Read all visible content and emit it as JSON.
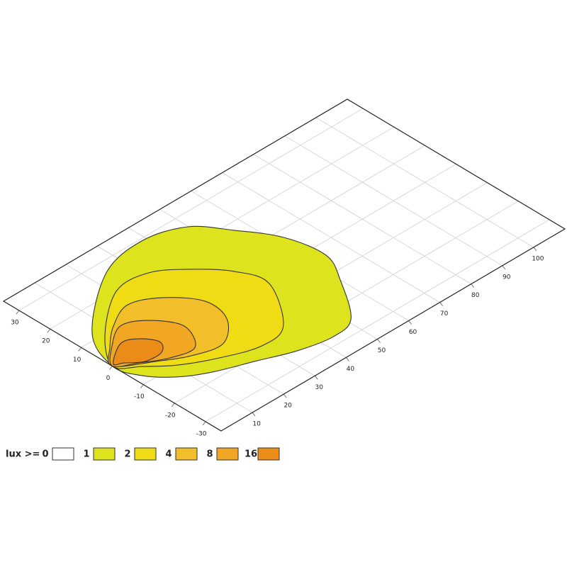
{
  "chart_data": {
    "type": "contour",
    "xlim": [
      0,
      110
    ],
    "ylim": [
      -35,
      35
    ],
    "xticks": [
      10,
      20,
      30,
      40,
      50,
      60,
      70,
      80,
      90,
      100
    ],
    "yticks": [
      -30,
      -20,
      -10,
      0,
      10,
      20,
      30
    ],
    "grid": true,
    "legend_label": "lux >=",
    "levels": [
      {
        "value": 0,
        "color": "#ffffff"
      },
      {
        "value": 1,
        "color": "#dde41e",
        "x": [
          0,
          5.65,
          24.2,
          38.6,
          49.8,
          56.3,
          62.4,
          64.4,
          60.0,
          51.2,
          43.5,
          34.0,
          24.3,
          14.5,
          7.5,
          2.2
        ],
        "y": [
          0,
          12.18,
          26.3,
          29.3,
          25.8,
          17.5,
          7.6,
          -4.0,
          -13.0,
          -25.3,
          -27.3,
          -25.4,
          -21.5,
          -17.6,
          -13.3,
          -7.3
        ]
      },
      {
        "value": 2,
        "color": "#f0dc14",
        "x": [
          0,
          7.7,
          21.1,
          31.1,
          38.9,
          45.2,
          47.6,
          38.4,
          29.6,
          19.5,
          10.7,
          4.6
        ],
        "y": [
          0,
          10.1,
          19.8,
          19.5,
          13.7,
          6.3,
          -2.6,
          -16.4,
          -18.4,
          -14.9,
          -10.1,
          -4.8
        ]
      },
      {
        "value": 4,
        "color": "#f2bf2a",
        "x": [
          0,
          4.7,
          11.0,
          19.0,
          26.7,
          32.5,
          31.2,
          23.9,
          15.5,
          8.3
        ],
        "y": [
          0,
          5.5,
          10.7,
          14.2,
          10.5,
          2.7,
          -5.5,
          -11.6,
          -9.8,
          -5.7
        ]
      },
      {
        "value": 8,
        "color": "#f1a624",
        "x": [
          0,
          5.0,
          12.1,
          18.2,
          22.4,
          18.4,
          11.5,
          5.0
        ],
        "y": [
          0,
          5.2,
          9.6,
          6.6,
          -0.6,
          -8.1,
          -7.0,
          -3.3
        ]
      },
      {
        "value": 16,
        "color": "#ec8c18",
        "x": [
          0.8,
          7.4,
          11.5,
          14.2,
          11.7,
          6.6,
          2.7
        ],
        "y": [
          0.5,
          4.8,
          3.3,
          -0.9,
          -4.1,
          -4.0,
          -1.0
        ]
      }
    ]
  }
}
